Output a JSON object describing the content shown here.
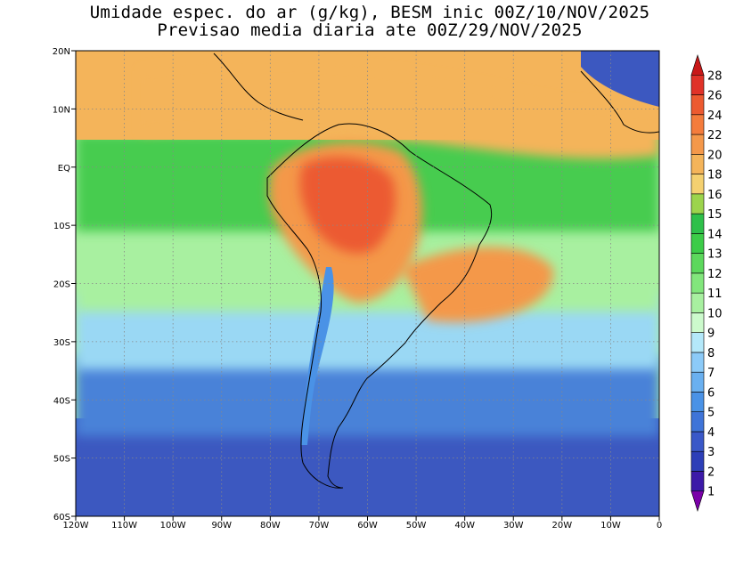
{
  "title": {
    "line1": "Umidade espec. do ar (g/kg), BESM inic 00Z/10/NOV/2025",
    "line2": "Previsao media diaria ate 00Z/29/NOV/2025"
  },
  "axes": {
    "lat_labels": [
      "20N",
      "10N",
      "EQ",
      "10S",
      "20S",
      "30S",
      "40S",
      "50S",
      "60S"
    ],
    "lat_values": [
      20,
      10,
      0,
      -10,
      -20,
      -30,
      -40,
      -50,
      -60
    ],
    "lon_labels": [
      "120W",
      "110W",
      "100W",
      "90W",
      "80W",
      "70W",
      "60W",
      "50W",
      "40W",
      "30W",
      "20W",
      "10W",
      "0"
    ],
    "lon_values": [
      -120,
      -110,
      -100,
      -90,
      -80,
      -70,
      -60,
      -50,
      -40,
      -30,
      -20,
      -10,
      0
    ]
  },
  "colorbar": {
    "levels": [
      "1",
      "2",
      "3",
      "4",
      "5",
      "6",
      "7",
      "8",
      "9",
      "10",
      "11",
      "12",
      "13",
      "14",
      "15",
      "16",
      "18",
      "20",
      "22",
      "24",
      "26",
      "28"
    ],
    "colors": [
      "#7a00a8",
      "#3c1aa8",
      "#2d3fb8",
      "#3a58c8",
      "#3f74d8",
      "#4a92e6",
      "#6ab0f0",
      "#8ccaf8",
      "#b4e8fa",
      "#ccfacc",
      "#a8f0a0",
      "#82e67c",
      "#5cd85c",
      "#3ccc48",
      "#2ec04a",
      "#9cd44c",
      "#f4d070",
      "#f4b45a",
      "#f4984a",
      "#f47c3c",
      "#ec5a30",
      "#e03228",
      "#c81818"
    ]
  },
  "map_data": {
    "colors": {
      "ocean_south_far": "#3c58c0",
      "ocean_south": "#4a82d8",
      "ocean_mid": "#9ad8f4",
      "ocean_subtropic": "#a8f0a0",
      "ocean_tropic": "#46cc50",
      "amazon_core": "#ec5a30",
      "amazon": "#f4984a",
      "caribbean": "#f4b45a",
      "andes": "#4a92e6",
      "coast_line": "#000000",
      "grid_line": "#888888"
    }
  }
}
